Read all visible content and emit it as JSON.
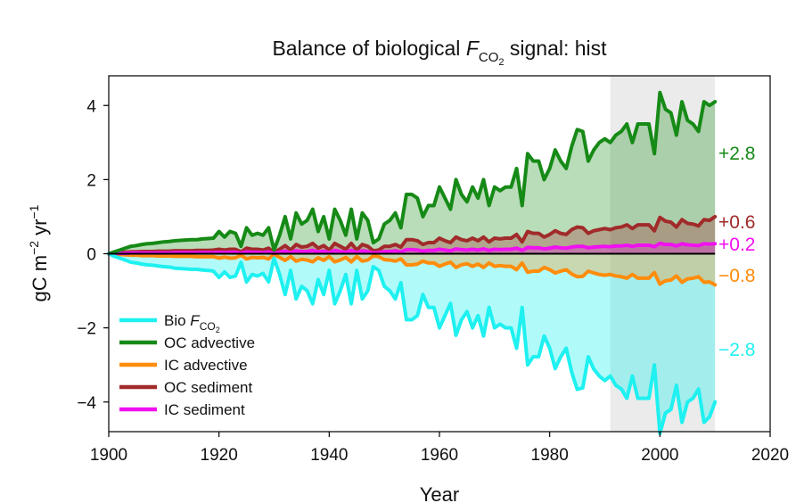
{
  "chart_data": {
    "type": "area",
    "title_main": "Balance of biological ",
    "title_var": "F",
    "title_sub": "CO",
    "title_subsub": "2",
    "title_tail": " signal: hist",
    "xlabel": "Year",
    "ylabel_a": "gC m",
    "ylabel_exp1": "−2",
    "ylabel_b": " yr",
    "ylabel_exp2": "−1",
    "xlim": [
      1900,
      2020
    ],
    "ylim": [
      -4.8,
      4.8
    ],
    "x_ticks": [
      1900,
      1920,
      1940,
      1960,
      1980,
      2000,
      2020
    ],
    "x_tick_labels": [
      "1900",
      "1920",
      "1940",
      "1960",
      "1980",
      "2000",
      "2020"
    ],
    "y_ticks": [
      4,
      2,
      0,
      -2,
      -4
    ],
    "y_tick_labels": [
      "4",
      "2",
      "0",
      "−2",
      "−4"
    ],
    "highlight_period": [
      1991,
      2010
    ],
    "legend_position": "bottom-left",
    "colors": {
      "bio": "#1ff0f0",
      "oc_adv": "#168a16",
      "ic_adv": "#ff8c0a",
      "oc_sed": "#a12a2a",
      "ic_sed": "#f010f0",
      "zero": "#000000",
      "highlight": "#ebebeb"
    },
    "x": [
      1900,
      1901,
      1902,
      1903,
      1904,
      1905,
      1906,
      1907,
      1908,
      1909,
      1910,
      1911,
      1912,
      1913,
      1914,
      1915,
      1916,
      1917,
      1918,
      1919,
      1920,
      1921,
      1922,
      1923,
      1924,
      1925,
      1926,
      1927,
      1928,
      1929,
      1930,
      1931,
      1932,
      1933,
      1934,
      1935,
      1936,
      1937,
      1938,
      1939,
      1940,
      1941,
      1942,
      1943,
      1944,
      1945,
      1946,
      1947,
      1948,
      1949,
      1950,
      1951,
      1952,
      1953,
      1954,
      1955,
      1956,
      1957,
      1958,
      1959,
      1960,
      1961,
      1962,
      1963,
      1964,
      1965,
      1966,
      1967,
      1968,
      1969,
      1970,
      1971,
      1972,
      1973,
      1974,
      1975,
      1976,
      1977,
      1978,
      1979,
      1980,
      1981,
      1982,
      1983,
      1984,
      1985,
      1986,
      1987,
      1988,
      1989,
      1990,
      1991,
      1992,
      1993,
      1994,
      1995,
      1996,
      1997,
      1998,
      1999,
      2000,
      2001,
      2002,
      2003,
      2004,
      2005,
      2006,
      2007,
      2008,
      2009,
      2010
    ],
    "series": [
      {
        "name": "OC advective",
        "key": "oc_adv",
        "values": [
          0,
          0.05,
          0.1,
          0.15,
          0.2,
          0.22,
          0.25,
          0.27,
          0.28,
          0.3,
          0.32,
          0.33,
          0.35,
          0.36,
          0.37,
          0.38,
          0.38,
          0.4,
          0.41,
          0.42,
          0.6,
          0.45,
          0.6,
          0.55,
          0.2,
          0.7,
          0.5,
          0.55,
          0.5,
          0.7,
          0.1,
          0.5,
          1.0,
          0.4,
          1.1,
          0.8,
          0.9,
          1.2,
          0.6,
          1.0,
          0.4,
          1.2,
          0.9,
          0.5,
          1.2,
          0.4,
          1.1,
          0.9,
          0.3,
          0.4,
          0.8,
          0.9,
          1.1,
          0.7,
          1.6,
          1.6,
          1.5,
          1.0,
          1.3,
          1.3,
          1.8,
          1.5,
          1.2,
          2.0,
          1.6,
          1.4,
          1.8,
          1.5,
          2.0,
          1.3,
          1.8,
          1.7,
          1.8,
          1.8,
          2.3,
          1.3,
          2.7,
          2.5,
          2.5,
          2.0,
          2.3,
          2.8,
          2.5,
          2.3,
          2.9,
          3.35,
          3.3,
          2.5,
          2.8,
          3.0,
          3.1,
          3.0,
          3.2,
          3.3,
          3.5,
          3.0,
          3.5,
          3.5,
          3.5,
          2.7,
          4.35,
          3.9,
          3.8,
          3.2,
          4.1,
          3.6,
          3.5,
          3.3,
          4.1,
          4.0,
          4.1
        ],
        "final_label": "+2.8"
      },
      {
        "name": "OC sediment",
        "key": "oc_sed",
        "values": [
          0,
          0.02,
          0.03,
          0.04,
          0.05,
          0.05,
          0.06,
          0.06,
          0.06,
          0.07,
          0.07,
          0.07,
          0.08,
          0.08,
          0.08,
          0.08,
          0.09,
          0.09,
          0.09,
          0.1,
          0.12,
          0.1,
          0.12,
          0.12,
          0.05,
          0.15,
          0.12,
          0.12,
          0.1,
          0.15,
          0.03,
          0.12,
          0.22,
          0.1,
          0.25,
          0.18,
          0.2,
          0.28,
          0.15,
          0.22,
          0.1,
          0.28,
          0.2,
          0.12,
          0.28,
          0.1,
          0.25,
          0.2,
          0.08,
          0.1,
          0.2,
          0.2,
          0.25,
          0.18,
          0.38,
          0.38,
          0.35,
          0.25,
          0.3,
          0.3,
          0.42,
          0.35,
          0.3,
          0.45,
          0.38,
          0.35,
          0.42,
          0.35,
          0.45,
          0.32,
          0.42,
          0.4,
          0.42,
          0.42,
          0.52,
          0.32,
          0.6,
          0.55,
          0.55,
          0.45,
          0.52,
          0.62,
          0.55,
          0.52,
          0.65,
          0.72,
          0.7,
          0.55,
          0.62,
          0.65,
          0.68,
          0.65,
          0.7,
          0.72,
          0.78,
          0.68,
          0.78,
          0.78,
          0.78,
          0.62,
          0.98,
          0.88,
          0.85,
          0.72,
          0.92,
          0.82,
          0.8,
          0.75,
          0.92,
          0.9,
          1.0
        ],
        "final_label": "+0.6"
      },
      {
        "name": "IC sediment",
        "key": "ic_sed",
        "values": [
          0,
          0.01,
          0.01,
          0.01,
          0.02,
          0.02,
          0.02,
          0.02,
          0.02,
          0.02,
          0.02,
          0.02,
          0.03,
          0.03,
          0.03,
          0.03,
          0.03,
          0.03,
          0.03,
          0.03,
          0.04,
          0.03,
          0.04,
          0.04,
          0.02,
          0.05,
          0.04,
          0.04,
          0.03,
          0.05,
          0.01,
          0.04,
          0.07,
          0.03,
          0.08,
          0.06,
          0.06,
          0.09,
          0.05,
          0.07,
          0.03,
          0.09,
          0.06,
          0.04,
          0.09,
          0.03,
          0.08,
          0.06,
          0.02,
          0.03,
          0.06,
          0.06,
          0.08,
          0.05,
          0.11,
          0.11,
          0.1,
          0.07,
          0.09,
          0.09,
          0.12,
          0.1,
          0.08,
          0.13,
          0.11,
          0.1,
          0.12,
          0.1,
          0.13,
          0.09,
          0.12,
          0.11,
          0.12,
          0.12,
          0.15,
          0.09,
          0.17,
          0.16,
          0.16,
          0.13,
          0.15,
          0.18,
          0.16,
          0.15,
          0.18,
          0.2,
          0.2,
          0.16,
          0.18,
          0.19,
          0.2,
          0.19,
          0.21,
          0.21,
          0.23,
          0.2,
          0.23,
          0.23,
          0.23,
          0.19,
          0.28,
          0.25,
          0.25,
          0.21,
          0.27,
          0.24,
          0.23,
          0.22,
          0.27,
          0.26,
          0.27
        ],
        "final_label": "+0.2"
      },
      {
        "name": "IC advective",
        "key": "ic_adv",
        "values": [
          0,
          -0.01,
          -0.02,
          -0.03,
          -0.04,
          -0.04,
          -0.05,
          -0.05,
          -0.05,
          -0.06,
          -0.06,
          -0.06,
          -0.07,
          -0.07,
          -0.07,
          -0.07,
          -0.08,
          -0.08,
          -0.08,
          -0.08,
          -0.12,
          -0.09,
          -0.12,
          -0.11,
          -0.04,
          -0.14,
          -0.1,
          -0.11,
          -0.1,
          -0.14,
          -0.02,
          -0.1,
          -0.18,
          -0.08,
          -0.2,
          -0.15,
          -0.17,
          -0.22,
          -0.11,
          -0.18,
          -0.08,
          -0.22,
          -0.17,
          -0.1,
          -0.22,
          -0.08,
          -0.2,
          -0.17,
          -0.06,
          -0.08,
          -0.16,
          -0.17,
          -0.2,
          -0.14,
          -0.3,
          -0.3,
          -0.28,
          -0.2,
          -0.25,
          -0.25,
          -0.34,
          -0.28,
          -0.23,
          -0.37,
          -0.3,
          -0.27,
          -0.34,
          -0.28,
          -0.37,
          -0.25,
          -0.34,
          -0.32,
          -0.34,
          -0.34,
          -0.43,
          -0.25,
          -0.5,
          -0.47,
          -0.47,
          -0.37,
          -0.43,
          -0.52,
          -0.47,
          -0.43,
          -0.55,
          -0.62,
          -0.61,
          -0.47,
          -0.52,
          -0.56,
          -0.58,
          -0.56,
          -0.6,
          -0.62,
          -0.66,
          -0.56,
          -0.66,
          -0.66,
          -0.66,
          -0.51,
          -0.82,
          -0.73,
          -0.71,
          -0.6,
          -0.77,
          -0.68,
          -0.66,
          -0.62,
          -0.77,
          -0.76,
          -0.84
        ],
        "final_label": "−0.8"
      },
      {
        "name": "Bio F",
        "legend_sub": "CO",
        "legend_subsub": "2",
        "key": "bio",
        "values": [
          0,
          -0.07,
          -0.12,
          -0.17,
          -0.23,
          -0.25,
          -0.28,
          -0.3,
          -0.31,
          -0.33,
          -0.35,
          -0.36,
          -0.39,
          -0.4,
          -0.41,
          -0.42,
          -0.42,
          -0.44,
          -0.45,
          -0.47,
          -0.64,
          -0.49,
          -0.64,
          -0.6,
          -0.23,
          -0.76,
          -0.56,
          -0.6,
          -0.53,
          -0.76,
          -0.12,
          -0.56,
          -1.1,
          -0.45,
          -1.22,
          -0.88,
          -1.0,
          -1.35,
          -0.7,
          -1.1,
          -0.45,
          -1.35,
          -1.0,
          -0.56,
          -1.35,
          -0.45,
          -1.22,
          -1.0,
          -0.35,
          -0.45,
          -0.88,
          -1.0,
          -1.22,
          -0.78,
          -1.78,
          -1.78,
          -1.67,
          -1.1,
          -1.45,
          -1.45,
          -2.0,
          -1.67,
          -1.34,
          -2.2,
          -1.78,
          -1.56,
          -2.0,
          -1.67,
          -2.22,
          -1.45,
          -2.0,
          -1.9,
          -2.0,
          -2.0,
          -2.55,
          -1.45,
          -3.0,
          -2.78,
          -2.78,
          -2.22,
          -2.55,
          -3.1,
          -2.78,
          -2.55,
          -3.2,
          -3.66,
          -3.62,
          -2.78,
          -3.11,
          -3.3,
          -3.42,
          -3.3,
          -3.55,
          -3.65,
          -3.9,
          -3.3,
          -3.9,
          -3.9,
          -3.9,
          -3.0,
          -4.85,
          -4.3,
          -4.2,
          -3.55,
          -4.55,
          -4.0,
          -3.9,
          -3.65,
          -4.55,
          -4.4,
          -4.0
        ],
        "final_label": "−2.8"
      }
    ]
  }
}
